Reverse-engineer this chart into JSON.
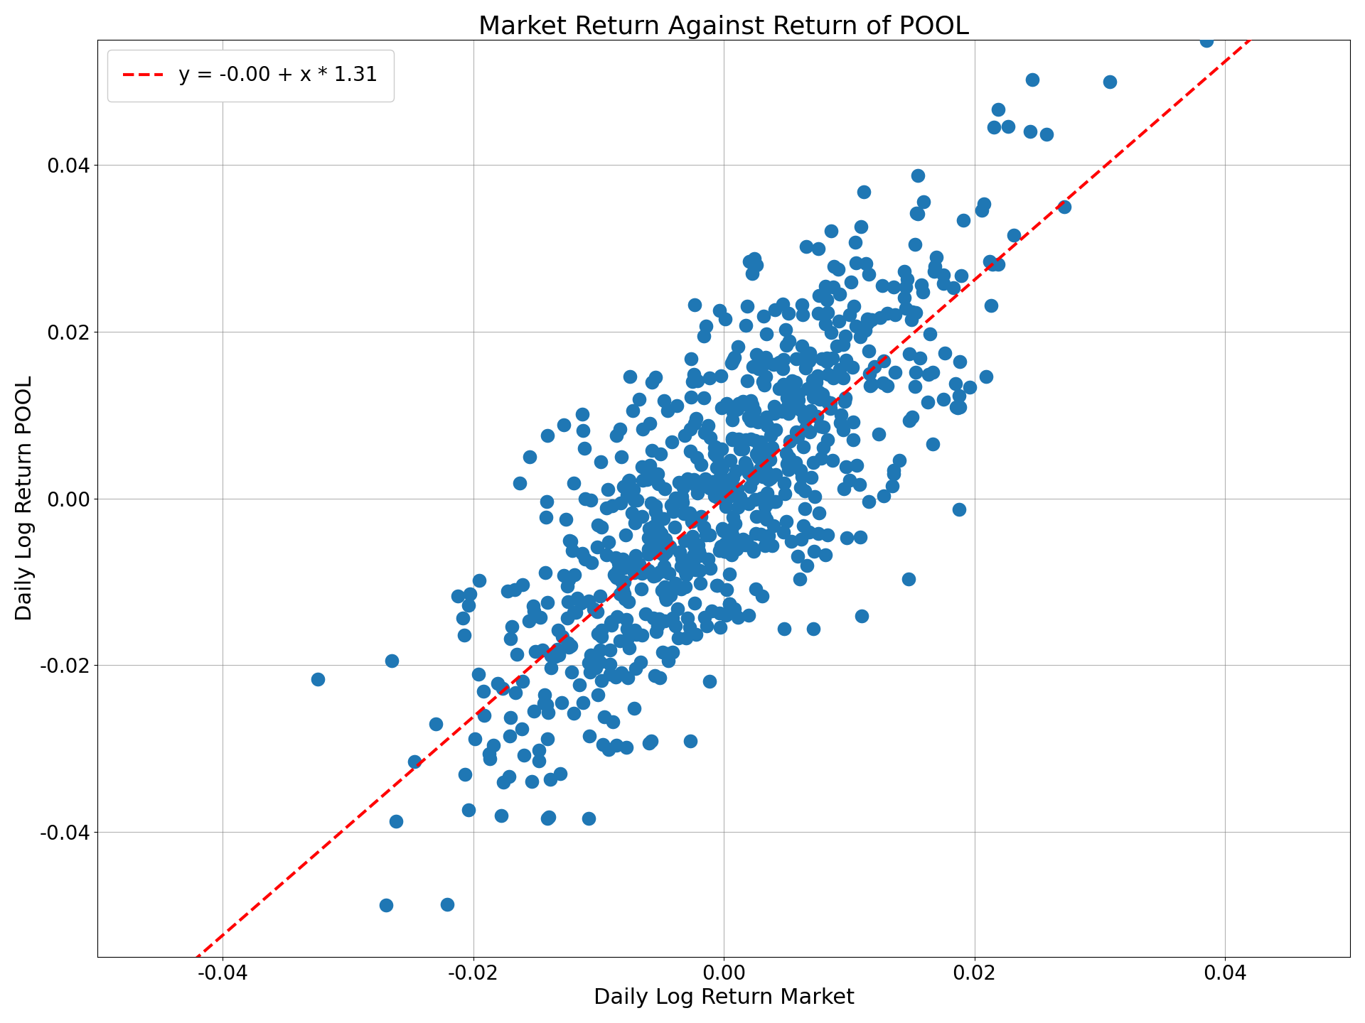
{
  "title": "Market Return Against Return of POOL",
  "xlabel": "Daily Log Return Market",
  "ylabel": "Daily Log Return POOL",
  "legend_label": "y = -0.00 + x * 1.31",
  "intercept": -0.0,
  "slope": 1.31,
  "xlim": [
    -0.05,
    0.05
  ],
  "ylim": [
    -0.055,
    0.055
  ],
  "xticks": [
    -0.04,
    -0.02,
    0.0,
    0.02,
    0.04
  ],
  "yticks": [
    -0.04,
    -0.02,
    0.0,
    0.02,
    0.04
  ],
  "scatter_color": "#1f77b4",
  "line_color": "red",
  "marker_size": 200,
  "alpha": 1.0,
  "random_seed": 42,
  "n_points": 750,
  "market_std": 0.01,
  "noise_std": 0.01,
  "title_fontsize": 26,
  "label_fontsize": 22,
  "tick_fontsize": 20,
  "legend_fontsize": 20
}
